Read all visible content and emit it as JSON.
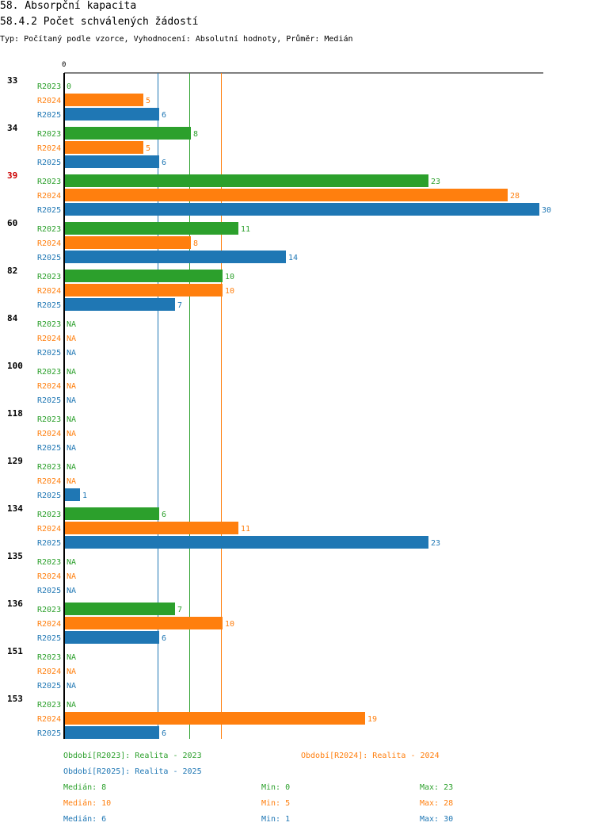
{
  "header": {
    "title": "58. Absorpční kapacita",
    "subtitle": "58.4.2 Počet schválených žádostí",
    "info": "Typ: Počítaný podle vzorce, Vyhodnocení: Absolutní hodnoty, Průměr: Medián"
  },
  "colors": {
    "R2023": "#2ca02c",
    "R2024": "#ff7f0e",
    "R2025": "#1f77b4",
    "highlight": "#cc0000",
    "axis": "#000000"
  },
  "chart_data": {
    "type": "bar",
    "orientation": "horizontal",
    "title": "58.4.2 Počet schválených žádostí",
    "x_tick_labels": [
      "0"
    ],
    "xlim": [
      0,
      30
    ],
    "na_label": "NA",
    "series_names": [
      "R2023",
      "R2024",
      "R2025"
    ],
    "categories": [
      "33",
      "34",
      "39",
      "60",
      "82",
      "84",
      "100",
      "118",
      "129",
      "134",
      "135",
      "136",
      "151",
      "153"
    ],
    "highlighted_category": "39",
    "series": [
      {
        "name": "R2023",
        "values": [
          0,
          8,
          23,
          11,
          10,
          null,
          null,
          null,
          null,
          6,
          null,
          7,
          null,
          null
        ]
      },
      {
        "name": "R2024",
        "values": [
          5,
          5,
          28,
          8,
          10,
          null,
          null,
          null,
          null,
          11,
          null,
          10,
          null,
          19
        ]
      },
      {
        "name": "R2025",
        "values": [
          6,
          6,
          30,
          14,
          7,
          null,
          null,
          null,
          1,
          23,
          null,
          6,
          null,
          6
        ]
      }
    ],
    "median_lines": [
      {
        "series": "R2023",
        "value": 8
      },
      {
        "series": "R2024",
        "value": 10
      },
      {
        "series": "R2025",
        "value": 6
      }
    ]
  },
  "legend": {
    "r2023": "Období[R2023]: Realita - 2023",
    "r2024": "Období[R2024]: Realita - 2024",
    "r2025": "Období[R2025]: Realita - 2025"
  },
  "stats": {
    "r2023": {
      "median": "Medián: 8",
      "min": "Min: 0",
      "max": "Max: 23"
    },
    "r2024": {
      "median": "Medián: 10",
      "min": "Min: 5",
      "max": "Max: 28"
    },
    "r2025": {
      "median": "Medián: 6",
      "min": "Min: 1",
      "max": "Max: 30"
    }
  }
}
